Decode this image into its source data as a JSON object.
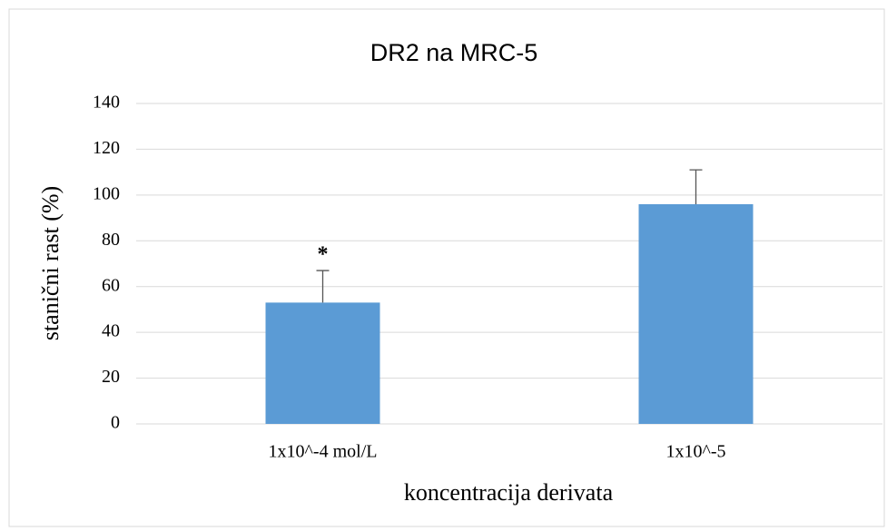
{
  "chart_data": {
    "type": "bar",
    "title": "DR2 na MRC-5",
    "x_label": "koncentracija derivata",
    "y_label": "stanični rast (%)",
    "categories": [
      "1x10^-4 mol/L",
      "1x10^-5"
    ],
    "values": [
      53,
      96
    ],
    "errors": [
      14,
      15
    ],
    "color": "#5b9bd5",
    "ylim": [
      0,
      140
    ],
    "yticks": [
      0,
      20,
      40,
      60,
      80,
      100,
      120,
      140
    ],
    "grid": true,
    "annotations": [
      {
        "category": "1x10^-4 mol/L",
        "text": "*"
      }
    ]
  }
}
